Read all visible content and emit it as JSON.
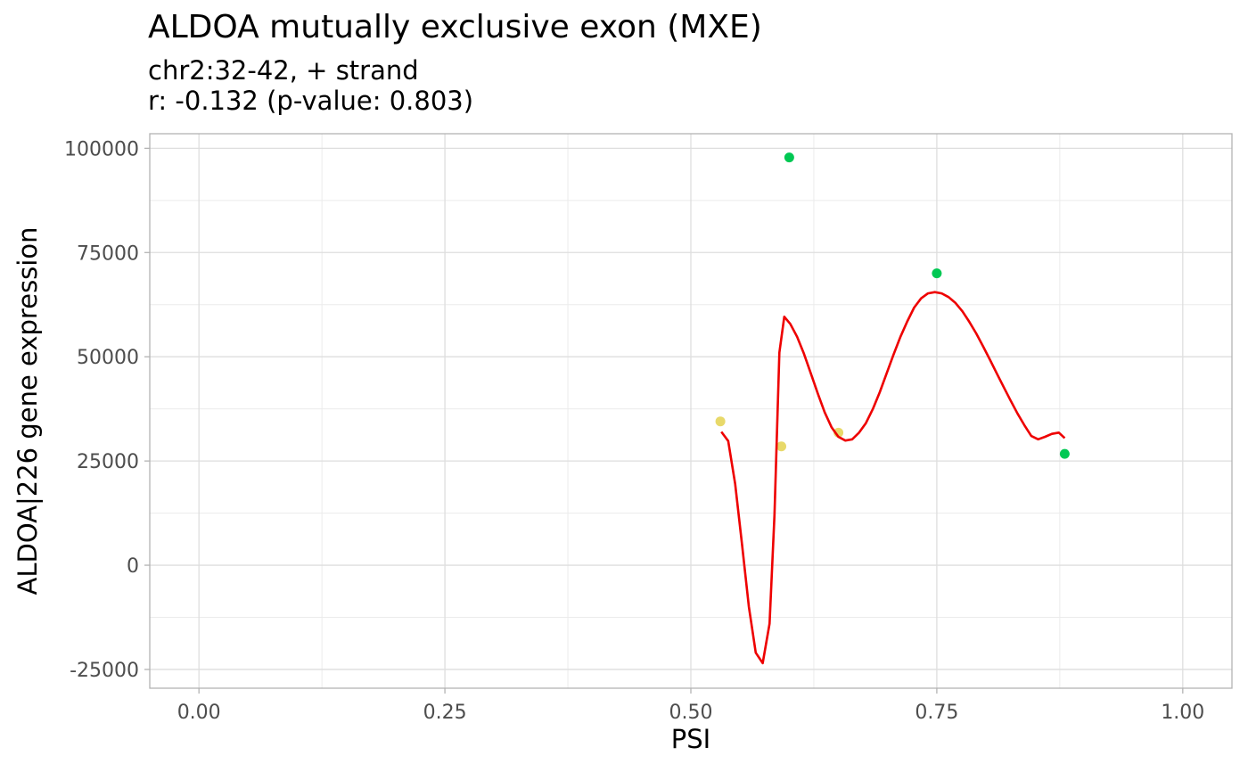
{
  "chart_data": {
    "type": "scatter",
    "title": "ALDOA mutually exclusive exon (MXE)",
    "subtitle_lines": [
      "chr2:32-42, + strand",
      "r: -0.132 (p-value: 0.803)"
    ],
    "xlabel": "PSI",
    "ylabel": "ALDOA|226 gene expression",
    "xlim": [
      -0.05,
      1.05
    ],
    "ylim": [
      -29500,
      103500
    ],
    "x_ticks": [
      0,
      0.25,
      0.5,
      0.75,
      1
    ],
    "x_tick_labels": [
      "0.00",
      "0.25",
      "0.50",
      "0.75",
      "1.00"
    ],
    "y_ticks": [
      -25000,
      0,
      25000,
      50000,
      75000,
      100000
    ],
    "y_tick_labels": [
      "-25000",
      "0",
      "25000",
      "50000",
      "75000",
      "100000"
    ],
    "grid": true,
    "points": [
      {
        "x": 0.53,
        "y": 34500,
        "color": "#E8D96A"
      },
      {
        "x": 0.592,
        "y": 28500,
        "color": "#E8D96A"
      },
      {
        "x": 0.65,
        "y": 31800,
        "color": "#E8D96A"
      },
      {
        "x": 0.6,
        "y": 97800,
        "color": "#00C853"
      },
      {
        "x": 0.75,
        "y": 70000,
        "color": "#00C853"
      },
      {
        "x": 0.88,
        "y": 26700,
        "color": "#00C853"
      }
    ],
    "fit_line": {
      "color": "#EE0000",
      "x": [
        0.531,
        0.538,
        0.545,
        0.552,
        0.559,
        0.566,
        0.573,
        0.58,
        0.585,
        0.59,
        0.595,
        0.601,
        0.608,
        0.615,
        0.622,
        0.629,
        0.636,
        0.643,
        0.65,
        0.657,
        0.664,
        0.671,
        0.678,
        0.685,
        0.692,
        0.699,
        0.706,
        0.713,
        0.72,
        0.727,
        0.734,
        0.741,
        0.748,
        0.755,
        0.762,
        0.769,
        0.776,
        0.783,
        0.79,
        0.797,
        0.804,
        0.811,
        0.818,
        0.825,
        0.832,
        0.839,
        0.846,
        0.853,
        0.86,
        0.867,
        0.874,
        0.88
      ],
      "y": [
        32000,
        29800,
        19500,
        5000,
        -10000,
        -21000,
        -23500,
        -14000,
        12000,
        51000,
        59600,
        57900,
        54800,
        50700,
        46000,
        41200,
        36700,
        33100,
        30800,
        29900,
        30200,
        31800,
        34100,
        37500,
        41500,
        46000,
        50500,
        54800,
        58500,
        61800,
        64000,
        65200,
        65500,
        65200,
        64300,
        62900,
        60900,
        58400,
        55600,
        52500,
        49300,
        46000,
        42700,
        39500,
        36400,
        33600,
        31000,
        30200,
        30800,
        31500,
        31800,
        30500
      ]
    }
  }
}
